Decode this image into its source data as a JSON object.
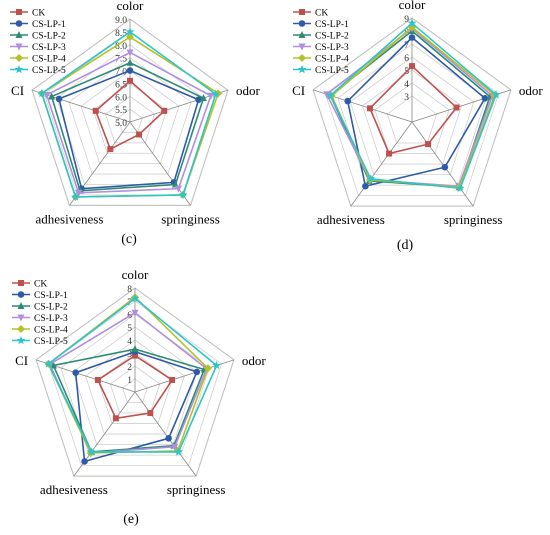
{
  "chart_data": [
    {
      "type": "radar",
      "panel_label": "(c)",
      "axes": [
        "color",
        "odor",
        "springiness",
        "adhesiveness",
        "CI"
      ],
      "rlim": [
        5.0,
        9.0
      ],
      "ticks": [
        "5.0",
        "5.5",
        "6.0",
        "6.5",
        "7.0",
        "7.5",
        "8.0",
        "8.5",
        "9.0"
      ],
      "tick_values": [
        5.0,
        5.5,
        6.0,
        6.5,
        7.0,
        7.5,
        8.0,
        8.5,
        9.0
      ],
      "series": [
        {
          "name": "CK",
          "values": [
            6.6,
            6.4,
            5.6,
            6.3,
            6.4
          ]
        },
        {
          "name": "CS-LP-1",
          "values": [
            7.0,
            7.8,
            7.9,
            8.2,
            7.9
          ]
        },
        {
          "name": "CS-LP-2",
          "values": [
            7.3,
            8.0,
            8.0,
            8.3,
            8.2
          ]
        },
        {
          "name": "CS-LP-3",
          "values": [
            7.7,
            8.3,
            8.2,
            8.4,
            8.4
          ]
        },
        {
          "name": "CS-LP-4",
          "values": [
            8.3,
            8.6,
            8.5,
            8.6,
            8.6
          ]
        },
        {
          "name": "CS-LP-5",
          "values": [
            8.5,
            8.5,
            8.5,
            8.6,
            8.6
          ]
        }
      ]
    },
    {
      "type": "radar",
      "panel_label": "(d)",
      "axes": [
        "color",
        "odor",
        "springiness",
        "adhesiveness",
        "CI"
      ],
      "rlim": [
        1,
        9
      ],
      "ticks": [
        "3",
        "4",
        "5",
        "6",
        "7",
        "8",
        "9"
      ],
      "tick_values": [
        3,
        4,
        5,
        6,
        7,
        8,
        9
      ],
      "series": [
        {
          "name": "CK",
          "values": [
            5.3,
            4.6,
            3.1,
            4.0,
            4.4
          ]
        },
        {
          "name": "CS-LP-1",
          "values": [
            7.5,
            6.9,
            5.3,
            7.1,
            6.2
          ]
        },
        {
          "name": "CS-LP-2",
          "values": [
            8.0,
            7.3,
            7.2,
            6.6,
            7.6
          ]
        },
        {
          "name": "CS-LP-3",
          "values": [
            8.2,
            7.5,
            7.1,
            6.5,
            7.9
          ]
        },
        {
          "name": "CS-LP-4",
          "values": [
            8.3,
            7.7,
            7.2,
            6.5,
            7.5
          ]
        },
        {
          "name": "CS-LP-5",
          "values": [
            8.6,
            7.8,
            7.3,
            6.4,
            7.6
          ]
        }
      ]
    },
    {
      "type": "radar",
      "panel_label": "(e)",
      "axes": [
        "color",
        "odor",
        "springiness",
        "adhesiveness",
        "CI"
      ],
      "rlim": [
        0,
        8
      ],
      "ticks": [
        "1",
        "2",
        "3",
        "4",
        "5",
        "6",
        "7",
        "8"
      ],
      "tick_values": [
        1,
        2,
        3,
        4,
        5,
        6,
        7,
        8
      ],
      "series": [
        {
          "name": "CK",
          "values": [
            2.8,
            3.0,
            2.0,
            2.5,
            3.0
          ]
        },
        {
          "name": "CS-LP-1",
          "values": [
            3.1,
            5.0,
            4.4,
            6.6,
            4.8
          ]
        },
        {
          "name": "CS-LP-2",
          "values": [
            3.3,
            5.6,
            5.1,
            5.7,
            6.6
          ]
        },
        {
          "name": "CS-LP-3",
          "values": [
            6.1,
            5.8,
            5.2,
            5.8,
            6.9
          ]
        },
        {
          "name": "CS-LP-4",
          "values": [
            7.3,
            5.9,
            5.6,
            5.8,
            7.0
          ]
        },
        {
          "name": "CS-LP-5",
          "values": [
            7.2,
            6.6,
            5.7,
            5.7,
            7.0
          ]
        }
      ]
    }
  ],
  "series_colors": {
    "CK": "#c0504d",
    "CS-LP-1": "#2e5aa8",
    "CS-LP-2": "#2e8b73",
    "CS-LP-3": "#b08ee0",
    "CS-LP-4": "#b5c12a",
    "CS-LP-5": "#2ec4c9"
  },
  "series_markers": {
    "CK": "square",
    "CS-LP-1": "circle",
    "CS-LP-2": "triangle-up",
    "CS-LP-3": "triangle-down",
    "CS-LP-4": "diamond",
    "CS-LP-5": "star"
  }
}
